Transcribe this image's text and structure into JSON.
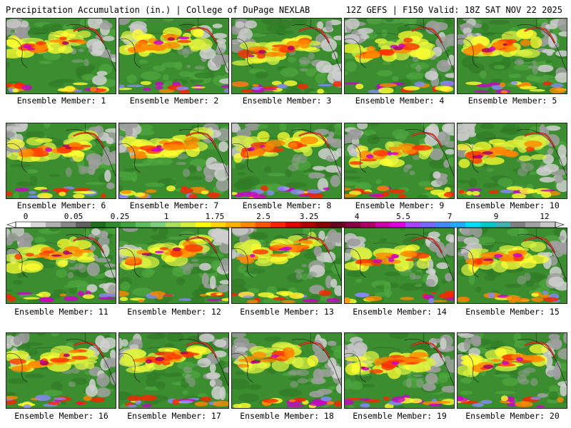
{
  "header": {
    "title": "Precipitation Accumulation (in.) | College of DuPage NEXLAB",
    "run_info": "12Z GEFS | F150 Valid: 18Z SAT NOV 22 2025"
  },
  "colorbar": {
    "labels": [
      "0",
      "0.05",
      "0.25",
      "1",
      "1.75",
      "2.5",
      "3.25",
      "4",
      "5.5",
      "7",
      "9",
      "12"
    ],
    "colors": [
      "#ffffff",
      "#d8d8d8",
      "#b0b0b0",
      "#888888",
      "#606060",
      "#1e6e1e",
      "#2e8b2e",
      "#3fa63f",
      "#5cc05c",
      "#7cd07c",
      "#a8e05a",
      "#d0f040",
      "#ffff00",
      "#ffd700",
      "#ffb000",
      "#ff8800",
      "#ff5500",
      "#ff2200",
      "#e00000",
      "#b00000",
      "#880000",
      "#660022",
      "#880044",
      "#aa0066",
      "#cc00aa",
      "#dd00dd",
      "#aa44ff",
      "#7766ff",
      "#4488ff",
      "#22aaff",
      "#00ddff",
      "#00c8c8",
      "#40b0b0",
      "#808080",
      "#a0a0a0",
      "#c8c8c8"
    ]
  },
  "members": [
    {
      "caption": "Ensemble Member: 1"
    },
    {
      "caption": "Ensemble Member: 2"
    },
    {
      "caption": "Ensemble Member: 3"
    },
    {
      "caption": "Ensemble Member: 4"
    },
    {
      "caption": "Ensemble Member: 5"
    },
    {
      "caption": "Ensemble Member: 6"
    },
    {
      "caption": "Ensemble Member: 7"
    },
    {
      "caption": "Ensemble Member: 8"
    },
    {
      "caption": "Ensemble Member: 9"
    },
    {
      "caption": "Ensemble Member: 10"
    },
    {
      "caption": "Ensemble Member: 11"
    },
    {
      "caption": "Ensemble Member: 12"
    },
    {
      "caption": "Ensemble Member: 13"
    },
    {
      "caption": "Ensemble Member: 14"
    },
    {
      "caption": "Ensemble Member: 15"
    },
    {
      "caption": "Ensemble Member: 16"
    },
    {
      "caption": "Ensemble Member: 17"
    },
    {
      "caption": "Ensemble Member: 18"
    },
    {
      "caption": "Ensemble Member: 19"
    },
    {
      "caption": "Ensemble Member: 20"
    }
  ]
}
